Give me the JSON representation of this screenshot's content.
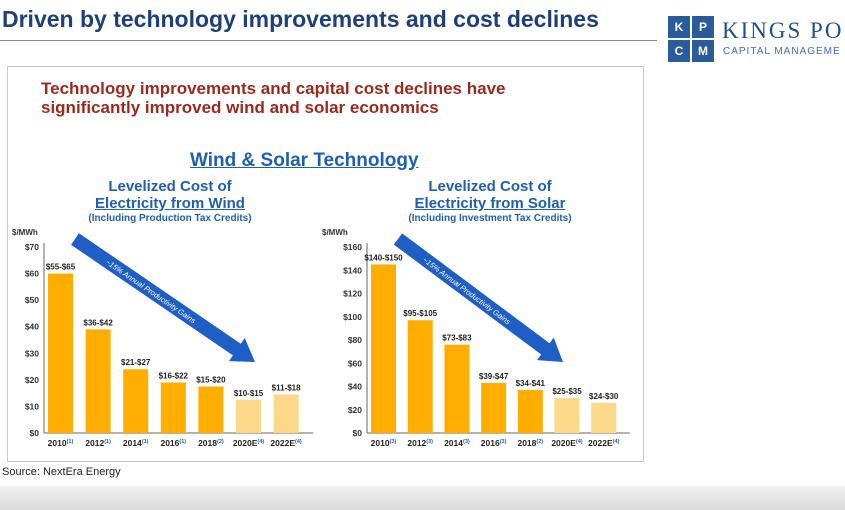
{
  "header": {
    "title": "Driven by technology improvements and cost declines",
    "logo_letters": [
      "K",
      "P",
      "C",
      "M"
    ],
    "logo_name": "KINGS PO",
    "logo_sub": "CAPITAL MANAGEME"
  },
  "slide": {
    "headline_line1": "Technology improvements and capital cost declines have",
    "headline_line2": "significantly improved wind and solar economics",
    "section_title": "Wind & Solar Technology"
  },
  "wind": {
    "title1": "Levelized Cost of",
    "title2": "Electricity from Wind",
    "title3": "(Including Production Tax Credits)"
  },
  "solar": {
    "title1": "Levelized Cost of",
    "title2": "Electricity from Solar",
    "title3": "(Including Investment Tax Credits)"
  },
  "source": "Source: NextEra Energy",
  "colors": {
    "actual": "#ffae00",
    "estimate": "#fcd88a",
    "arrow": "#1f5fc5",
    "title_blue": "#1f5fb0",
    "headline_red": "#9b2a1e"
  },
  "chart_data": [
    {
      "type": "bar",
      "ylabel": "$/MWh",
      "ylim": [
        0,
        70
      ],
      "yticks": [
        0,
        10,
        20,
        30,
        40,
        50,
        60,
        70
      ],
      "ytick_labels": [
        "$0",
        "$10",
        "$20",
        "$30",
        "$40",
        "$50",
        "$60",
        "$70"
      ],
      "categories": [
        "2010",
        "2012",
        "2014",
        "2016",
        "2018",
        "2020E",
        "2022E"
      ],
      "footnotes": [
        "(1)",
        "(1)",
        "(1)",
        "(1)",
        "(2)",
        "(4)",
        "(4)"
      ],
      "values": [
        60,
        39,
        24,
        19,
        17.5,
        12.5,
        14.5
      ],
      "data_labels": [
        "$55-$65",
        "$36-$42",
        "$21-$27",
        "$16-$22",
        "$15-$20",
        "$10-$15",
        "$11-$18"
      ],
      "estimated": [
        false,
        false,
        false,
        false,
        false,
        true,
        true
      ],
      "annotation": "~15% Annual Productivity Gains"
    },
    {
      "type": "bar",
      "ylabel": "$/MWh",
      "ylim": [
        0,
        160
      ],
      "yticks": [
        0,
        20,
        40,
        60,
        80,
        100,
        120,
        140,
        160
      ],
      "ytick_labels": [
        "$0",
        "$20",
        "$40",
        "$60",
        "$80",
        "$100",
        "$120",
        "$140",
        "$160"
      ],
      "categories": [
        "2010",
        "2012",
        "2014",
        "2016",
        "2018",
        "2020E",
        "2022E"
      ],
      "footnotes": [
        "(3)",
        "(3)",
        "(3)",
        "(3)",
        "(2)",
        "(4)",
        "(4)"
      ],
      "values": [
        145,
        97,
        76,
        43,
        37,
        30,
        26
      ],
      "data_labels": [
        "$140-$150",
        "$95-$105",
        "$73-$83",
        "$39-$47",
        "$34-$41",
        "$25-$35",
        "$24-$30"
      ],
      "estimated": [
        false,
        false,
        false,
        false,
        false,
        true,
        true
      ],
      "annotation": "~15% Annual Productivity Gains"
    }
  ]
}
